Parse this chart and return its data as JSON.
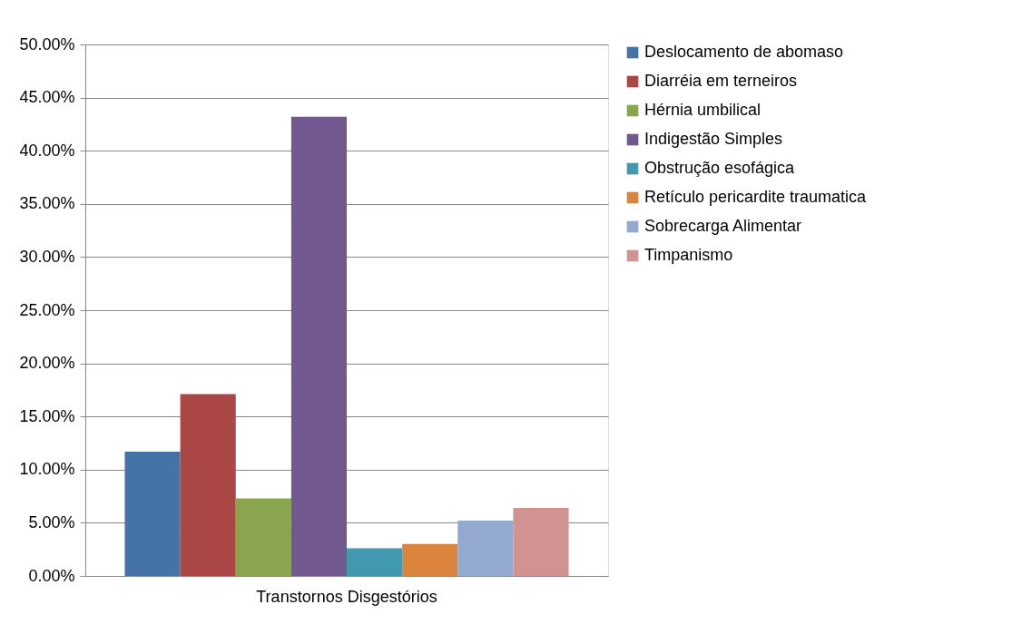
{
  "chart_data": {
    "type": "bar",
    "categories": [
      "Transtornos Disgestórios"
    ],
    "series": [
      {
        "name": "Deslocamento de abomaso",
        "color": "#4572a7",
        "values": [
          11.7
        ]
      },
      {
        "name": "Diarréia em terneiros",
        "color": "#aa4643",
        "values": [
          17.1
        ]
      },
      {
        "name": "Hérnia umbilical",
        "color": "#89a54e",
        "values": [
          7.3
        ]
      },
      {
        "name": "Indigestão Simples",
        "color": "#71588f",
        "values": [
          43.2
        ]
      },
      {
        "name": "Obstrução esofágica",
        "color": "#4198af",
        "values": [
          2.6
        ]
      },
      {
        "name": "Retículo pericardite traumatica",
        "color": "#db843d",
        "values": [
          3.0
        ]
      },
      {
        "name": "Sobrecarga Alimentar",
        "color": "#93a9cf",
        "values": [
          5.2
        ]
      },
      {
        "name": "Timpanismo",
        "color": "#d19392",
        "values": [
          6.4
        ]
      }
    ],
    "ylim": [
      0,
      50
    ],
    "yticks": [
      {
        "value": 0,
        "label": "0.00%"
      },
      {
        "value": 5,
        "label": "5.00%"
      },
      {
        "value": 10,
        "label": "10.00%"
      },
      {
        "value": 15,
        "label": "15.00%"
      },
      {
        "value": 20,
        "label": "20.00%"
      },
      {
        "value": 25,
        "label": "25.00%"
      },
      {
        "value": 30,
        "label": "30.00%"
      },
      {
        "value": 35,
        "label": "35.00%"
      },
      {
        "value": 40,
        "label": "40.00%"
      },
      {
        "value": 45,
        "label": "45.00%"
      },
      {
        "value": 50,
        "label": "50.00%"
      }
    ],
    "grid": "y",
    "legend": "right"
  }
}
